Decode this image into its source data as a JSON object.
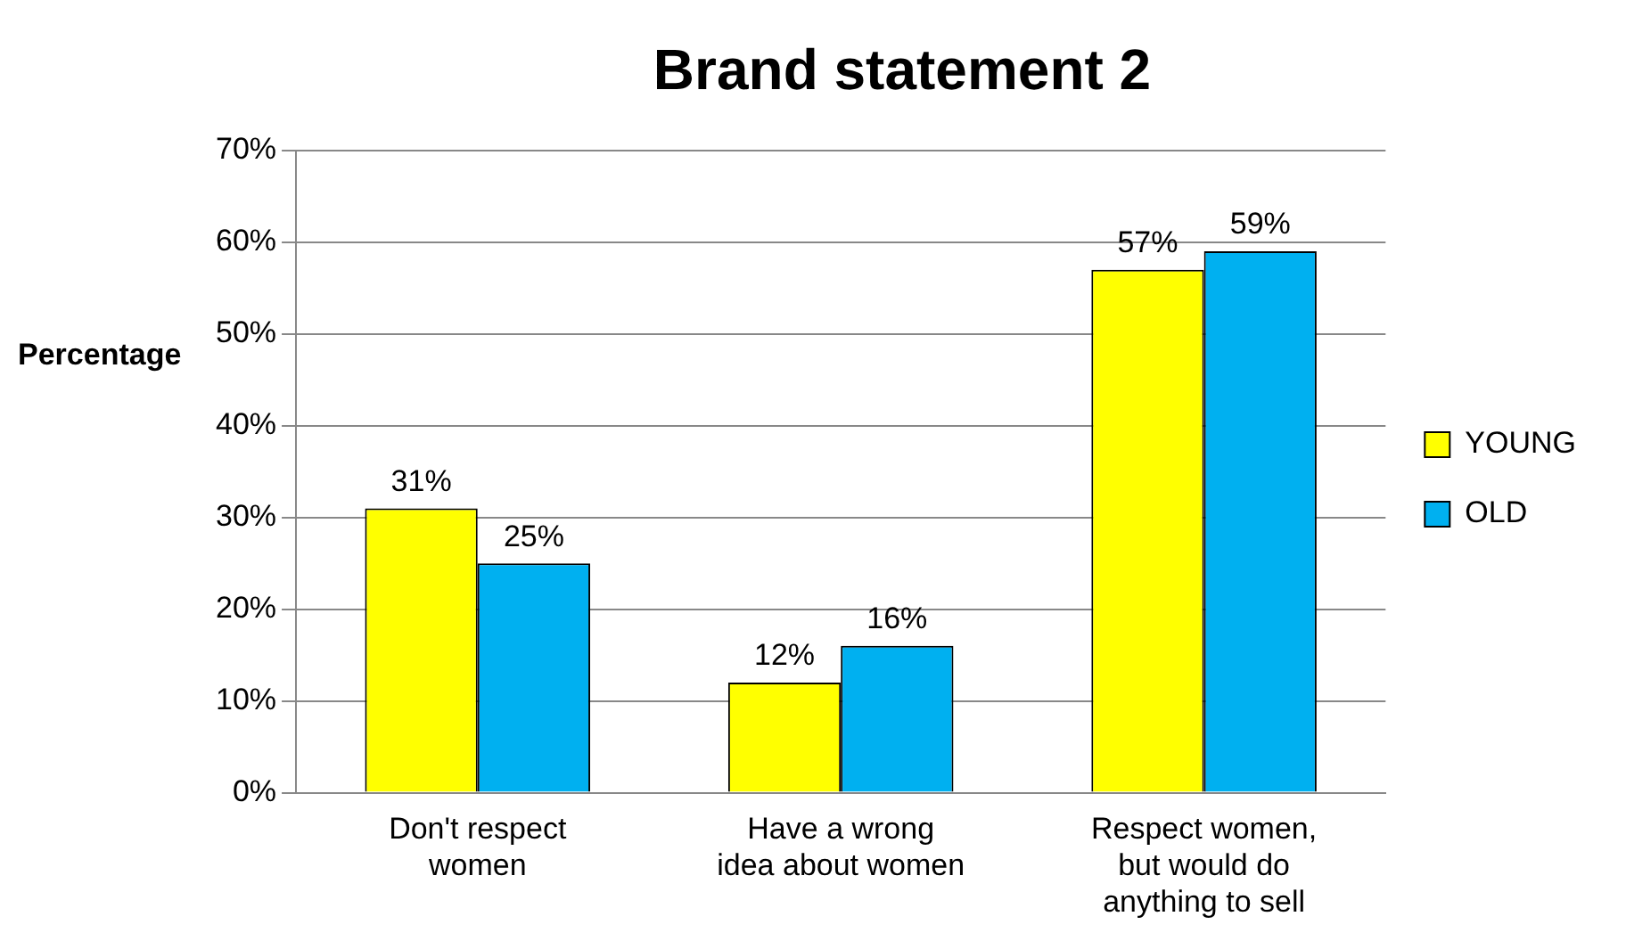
{
  "chart_data": {
    "type": "bar",
    "title": "Brand statement 2",
    "ylabel": "Percentage",
    "categories": [
      "Don't respect women",
      "Have a wrong idea about women",
      "Respect women, but would do anything to sell"
    ],
    "series": [
      {
        "name": "YOUNG",
        "color": "#ffff00",
        "values": [
          31,
          12,
          57
        ],
        "value_labels": [
          "31%",
          "12%",
          "57%"
        ]
      },
      {
        "name": "OLD",
        "color": "#00b0f0",
        "values": [
          25,
          16,
          59
        ],
        "value_labels": [
          "25%",
          "16%",
          "59%"
        ]
      }
    ],
    "ylim": [
      0,
      70
    ],
    "yticks": [
      {
        "value": 0,
        "label": "0%"
      },
      {
        "value": 10,
        "label": "10%"
      },
      {
        "value": 20,
        "label": "20%"
      },
      {
        "value": 30,
        "label": "30%"
      },
      {
        "value": 40,
        "label": "40%"
      },
      {
        "value": 50,
        "label": "50%"
      },
      {
        "value": 60,
        "label": "60%"
      },
      {
        "value": 70,
        "label": "70%"
      }
    ],
    "grid": "y",
    "legend": "right"
  }
}
